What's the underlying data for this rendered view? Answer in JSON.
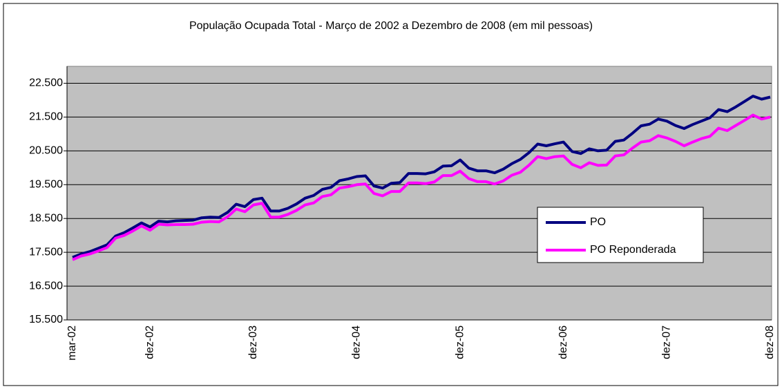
{
  "chart_data": {
    "type": "line",
    "title": "População Ocupada Total  - Março de 2002 a Dezembro de 2008 (em mil pessoas)",
    "categories": [
      "mar-02",
      null,
      null,
      null,
      null,
      null,
      null,
      null,
      null,
      "dez-02",
      null,
      null,
      null,
      null,
      null,
      null,
      null,
      null,
      null,
      null,
      null,
      "dez-03",
      null,
      null,
      null,
      null,
      null,
      null,
      null,
      null,
      null,
      null,
      null,
      "dez-04",
      null,
      null,
      null,
      null,
      null,
      null,
      null,
      null,
      null,
      null,
      null,
      "dez-05",
      null,
      null,
      null,
      null,
      null,
      null,
      null,
      null,
      null,
      null,
      null,
      "dez-06",
      null,
      null,
      null,
      null,
      null,
      null,
      null,
      null,
      null,
      null,
      null,
      "dez-07",
      null,
      null,
      null,
      null,
      null,
      null,
      null,
      null,
      null,
      null,
      null,
      "dez-08"
    ],
    "series": [
      {
        "name": "PO",
        "color": "#000080",
        "values": [
          17350,
          17450,
          17520,
          17620,
          17720,
          17980,
          18080,
          18220,
          18370,
          18250,
          18420,
          18400,
          18430,
          18440,
          18450,
          18520,
          18540,
          18530,
          18680,
          18920,
          18850,
          19060,
          19100,
          18720,
          18720,
          18800,
          18930,
          19100,
          19180,
          19360,
          19420,
          19620,
          19670,
          19740,
          19760,
          19460,
          19400,
          19540,
          19560,
          19830,
          19830,
          19820,
          19880,
          20050,
          20060,
          20230,
          19990,
          19910,
          19910,
          19850,
          19960,
          20120,
          20250,
          20450,
          20700,
          20650,
          20710,
          20760,
          20480,
          20420,
          20560,
          20500,
          20520,
          20780,
          20820,
          21020,
          21240,
          21290,
          21440,
          21380,
          21250,
          21160,
          21280,
          21380,
          21480,
          21720,
          21660,
          21800,
          21960,
          22120,
          22030,
          22090
        ]
      },
      {
        "name": "PO Reponderada",
        "color": "#ff00ff",
        "values": [
          17280,
          17390,
          17450,
          17540,
          17640,
          17920,
          18000,
          18130,
          18280,
          18150,
          18330,
          18310,
          18320,
          18320,
          18330,
          18390,
          18410,
          18400,
          18550,
          18780,
          18700,
          18900,
          18950,
          18540,
          18540,
          18620,
          18740,
          18900,
          18960,
          19150,
          19200,
          19400,
          19440,
          19500,
          19520,
          19240,
          19170,
          19300,
          19300,
          19550,
          19550,
          19530,
          19580,
          19770,
          19770,
          19900,
          19680,
          19590,
          19590,
          19520,
          19610,
          19780,
          19870,
          20080,
          20330,
          20270,
          20330,
          20350,
          20100,
          20000,
          20150,
          20070,
          20080,
          20350,
          20380,
          20580,
          20760,
          20800,
          20950,
          20880,
          20780,
          20650,
          20760,
          20860,
          20930,
          21170,
          21100,
          21250,
          21400,
          21560,
          21440,
          21500
        ]
      }
    ],
    "ylim": [
      15500,
      23000
    ],
    "yticks": [
      {
        "value": 15500,
        "label": "15.500"
      },
      {
        "value": 16500,
        "label": "16.500"
      },
      {
        "value": 17500,
        "label": "17.500"
      },
      {
        "value": 18500,
        "label": "18.500"
      },
      {
        "value": 19500,
        "label": "19.500"
      },
      {
        "value": 20500,
        "label": "20.500"
      },
      {
        "value": 21500,
        "label": "21.500"
      },
      {
        "value": 22500,
        "label": "22.500"
      }
    ],
    "grid": true,
    "legend": "right",
    "plot_background": "#c0c0c0"
  }
}
